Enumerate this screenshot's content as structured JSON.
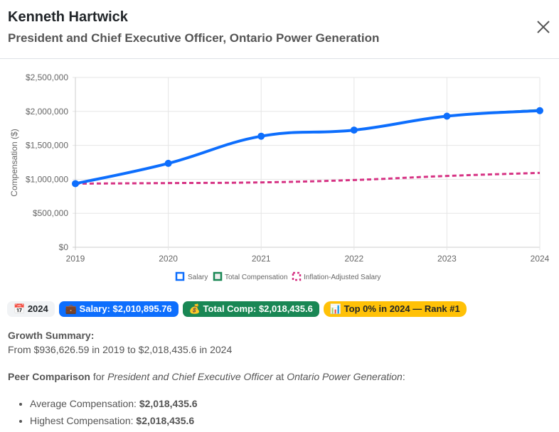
{
  "header": {
    "name": "Kenneth Hartwick",
    "subtitle": "President and Chief Executive Officer, Ontario Power Generation"
  },
  "chart_data": {
    "type": "line",
    "x": [
      "2019",
      "2020",
      "2021",
      "2022",
      "2023",
      "2024"
    ],
    "ylabel": "Compensation ($)",
    "ylim": [
      0,
      2500000
    ],
    "yticks": [
      "$0",
      "$500,000",
      "$1,000,000",
      "$1,500,000",
      "$2,000,000",
      "$2,500,000"
    ],
    "grid": true,
    "legend_position": "bottom",
    "series": [
      {
        "name": "Salary",
        "color": "#0d6efd",
        "values": [
          936626.59,
          1235000,
          1635000,
          1725000,
          1930000,
          2010895.76
        ]
      },
      {
        "name": "Total Compensation",
        "color": "#198754",
        "values": [
          936626.59,
          1235000,
          1635000,
          1725000,
          1930000,
          2018435.6
        ]
      },
      {
        "name": "Inflation-Adjusted Salary",
        "color": "#d63384",
        "dashed": true,
        "values": [
          936626.59,
          945000,
          955000,
          990000,
          1050000,
          1095000
        ]
      }
    ]
  },
  "badges": {
    "year": "2024",
    "salary": "Salary: $2,010,895.76",
    "total": "Total Comp: $2,018,435.6",
    "rank": "Top 0% in 2024 — Rank #1"
  },
  "growth": {
    "title": "Growth Summary:",
    "text": "From $936,626.59 in 2019 to $2,018,435.6 in 2024"
  },
  "peer": {
    "label": "Peer Comparison",
    "for": " for ",
    "title": "President and Chief Executive Officer",
    "at": " at ",
    "org": "Ontario Power Generation",
    "colon": ":",
    "items": [
      {
        "label": "Average Compensation: ",
        "value": "$2,018,435.6"
      },
      {
        "label": "Highest Compensation: ",
        "value": "$2,018,435.6"
      }
    ]
  }
}
